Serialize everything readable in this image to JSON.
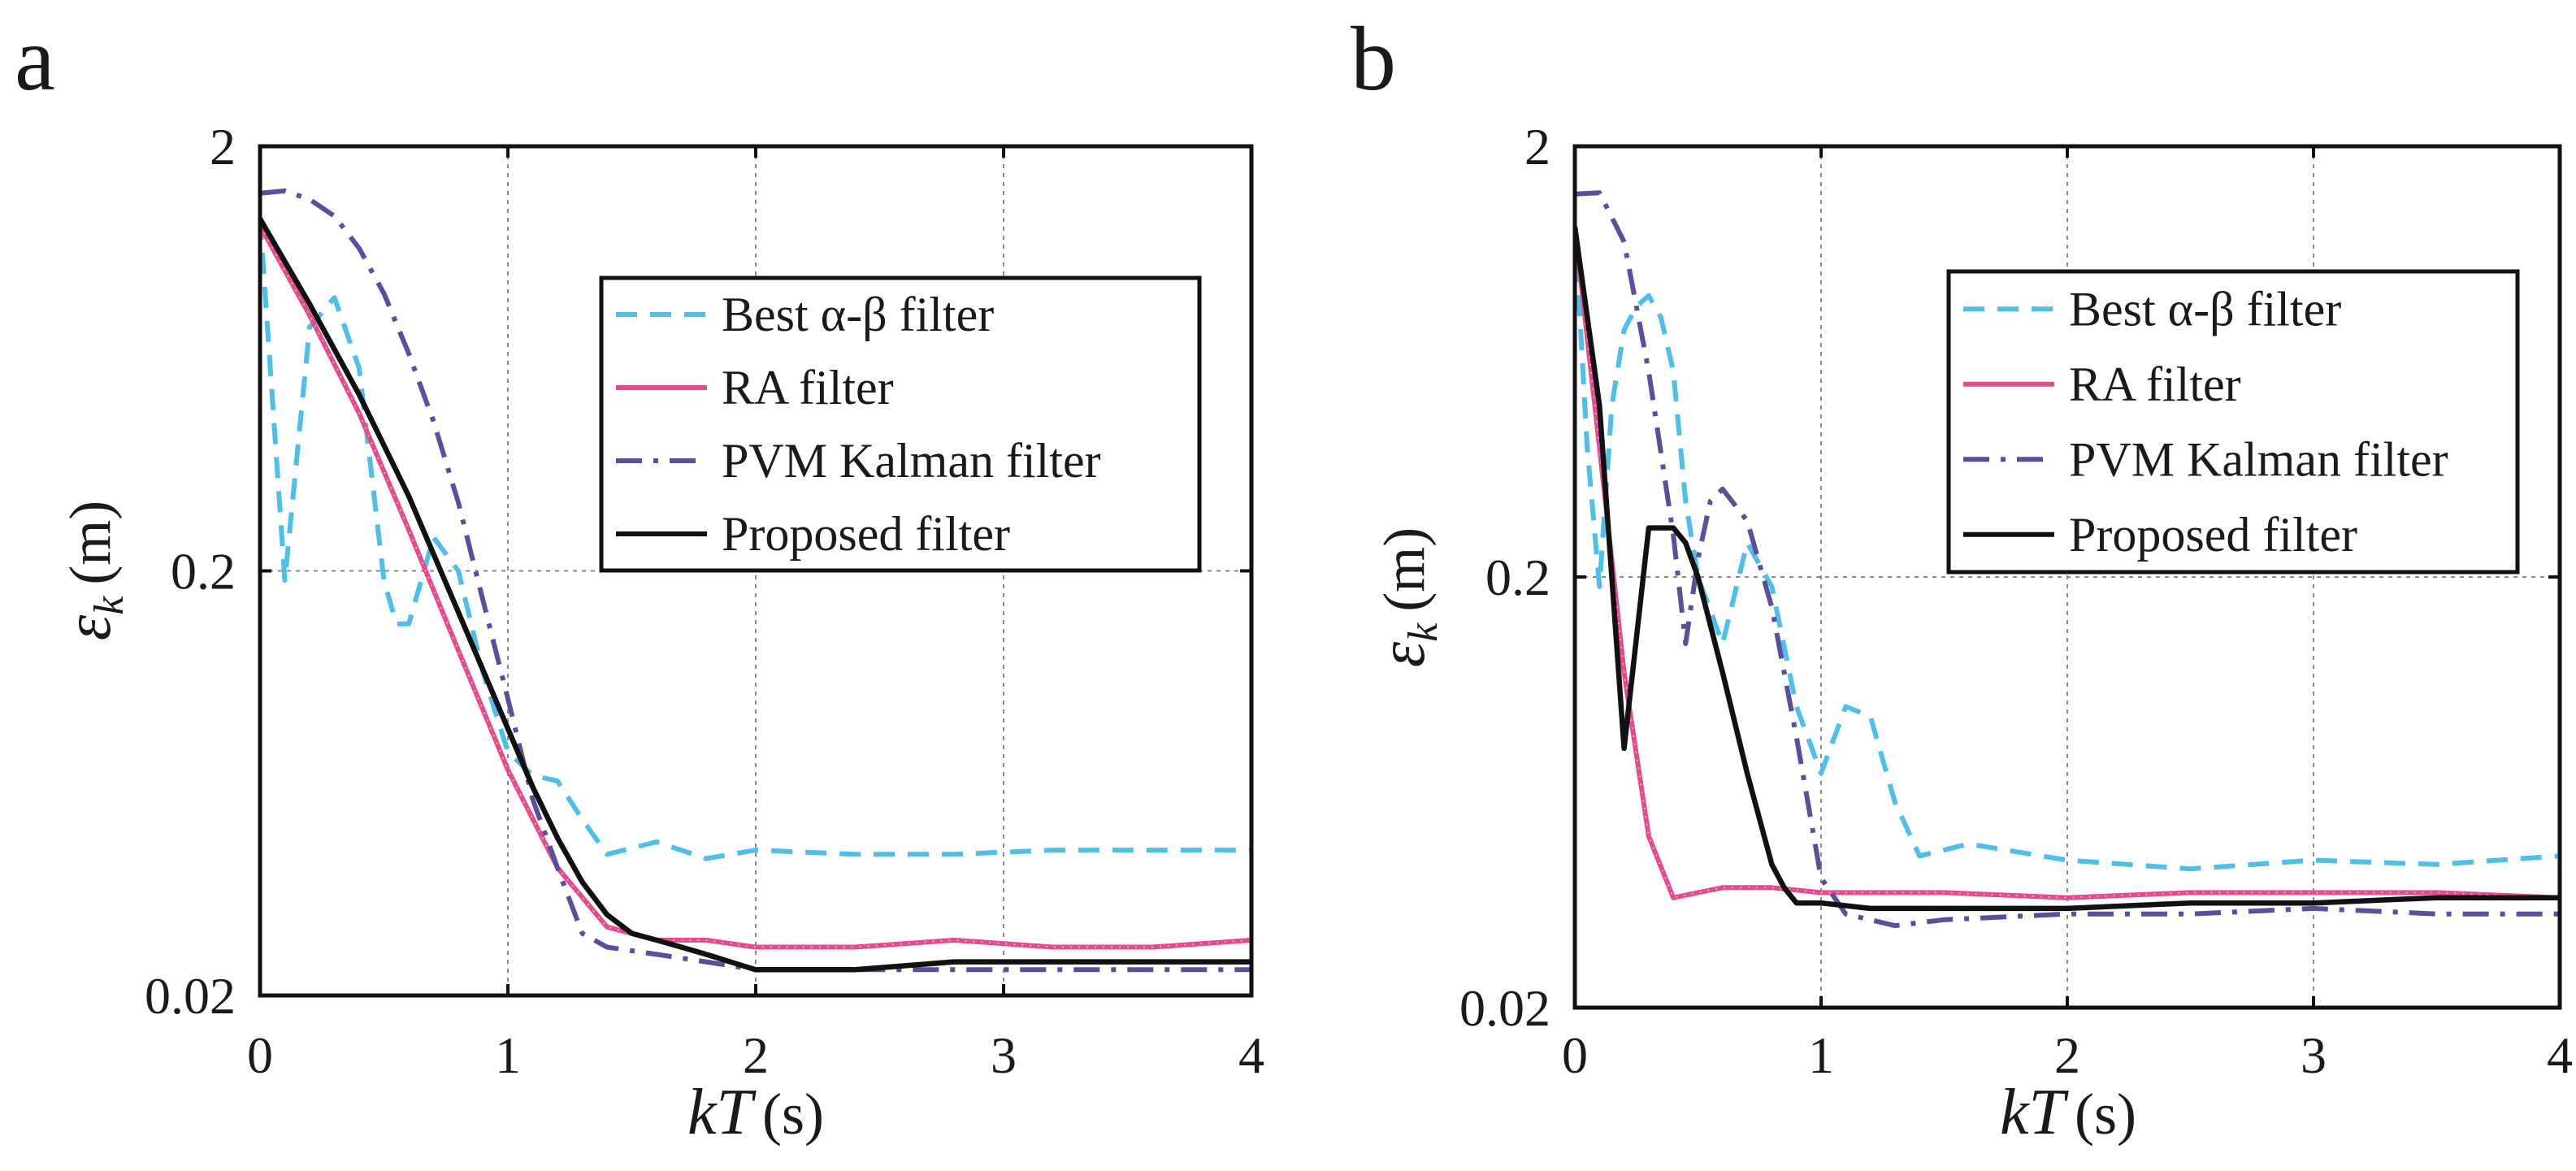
{
  "chart_data": [
    {
      "panel_label": "a",
      "type": "line",
      "xlabel": "kT (s)",
      "xlabel_var": "kT",
      "xlabel_unit": "(s)",
      "ylabel": "εk (m)",
      "ylabel_var": "ε",
      "ylabel_sub": "k",
      "ylabel_unit": "(m)",
      "xlim": [
        0,
        4
      ],
      "ylim": [
        0.02,
        2
      ],
      "yscale": "log",
      "xticks": [
        "0",
        "1",
        "2",
        "3",
        "4"
      ],
      "yticks": [
        "0.02",
        "0.2",
        "2"
      ],
      "grid": true,
      "legend_position": "top-right",
      "series": [
        {
          "name": "Best α-β filter",
          "color": "#4cc0e8",
          "style": "dashed",
          "x": [
            0,
            0.1,
            0.2,
            0.3,
            0.4,
            0.5,
            0.55,
            0.6,
            0.7,
            0.8,
            0.9,
            1.0,
            1.1,
            1.2,
            1.3,
            1.4,
            1.6,
            1.8,
            2.0,
            2.4,
            2.8,
            3.2,
            3.6,
            4.0
          ],
          "y": [
            1.35,
            0.19,
            0.75,
            0.88,
            0.6,
            0.19,
            0.15,
            0.15,
            0.24,
            0.2,
            0.115,
            0.075,
            0.066,
            0.064,
            0.052,
            0.043,
            0.046,
            0.042,
            0.044,
            0.043,
            0.043,
            0.044,
            0.044,
            0.044
          ]
        },
        {
          "name": "RA filter",
          "color": "#e8498d",
          "style": "dotted-solid",
          "x": [
            0,
            0.2,
            0.4,
            0.6,
            0.8,
            1.0,
            1.2,
            1.4,
            1.6,
            1.8,
            2.0,
            2.4,
            2.8,
            3.2,
            3.6,
            4.0
          ],
          "y": [
            1.3,
            0.8,
            0.47,
            0.25,
            0.13,
            0.068,
            0.04,
            0.029,
            0.027,
            0.027,
            0.026,
            0.026,
            0.027,
            0.026,
            0.026,
            0.027
          ]
        },
        {
          "name": "PVM Kalman filter",
          "color": "#5a4f9c",
          "style": "dashdot",
          "x": [
            0,
            0.1,
            0.2,
            0.3,
            0.4,
            0.5,
            0.6,
            0.7,
            0.8,
            0.9,
            1.0,
            1.1,
            1.2,
            1.3,
            1.4,
            1.6,
            1.8,
            2.0,
            2.4,
            2.8,
            3.2,
            3.6,
            4.0
          ],
          "y": [
            1.55,
            1.57,
            1.5,
            1.37,
            1.15,
            0.9,
            0.65,
            0.45,
            0.29,
            0.17,
            0.1,
            0.058,
            0.04,
            0.028,
            0.026,
            0.025,
            0.024,
            0.023,
            0.023,
            0.023,
            0.023,
            0.023,
            0.023
          ]
        },
        {
          "name": "Proposed filter",
          "color": "#111111",
          "style": "solid",
          "x": [
            0,
            0.2,
            0.4,
            0.6,
            0.8,
            1.0,
            1.1,
            1.2,
            1.3,
            1.4,
            1.5,
            1.6,
            1.7,
            1.8,
            2.0,
            2.4,
            2.8,
            3.2,
            3.6,
            4.0
          ],
          "y": [
            1.35,
            0.85,
            0.52,
            0.3,
            0.16,
            0.085,
            0.062,
            0.047,
            0.037,
            0.031,
            0.028,
            0.027,
            0.026,
            0.025,
            0.023,
            0.023,
            0.024,
            0.024,
            0.024,
            0.024
          ]
        }
      ]
    },
    {
      "panel_label": "b",
      "type": "line",
      "xlabel": "kT (s)",
      "xlabel_var": "kT",
      "xlabel_unit": "(s)",
      "ylabel": "εk (m)",
      "ylabel_var": "ε",
      "ylabel_sub": "k",
      "ylabel_unit": "(m)",
      "xlim": [
        0,
        4
      ],
      "ylim": [
        0.02,
        2
      ],
      "yscale": "log",
      "xticks": [
        "0",
        "1",
        "2",
        "3",
        "4"
      ],
      "yticks": [
        "0.02",
        "0.2",
        "2"
      ],
      "grid": true,
      "legend_position": "top-right",
      "series": [
        {
          "name": "Best α-β filter",
          "color": "#4cc0e8",
          "style": "dashed",
          "x": [
            0,
            0.05,
            0.1,
            0.15,
            0.2,
            0.25,
            0.3,
            0.35,
            0.4,
            0.45,
            0.5,
            0.6,
            0.7,
            0.8,
            0.9,
            1.0,
            1.1,
            1.2,
            1.3,
            1.4,
            1.6,
            2.0,
            2.5,
            3.0,
            3.5,
            4.0
          ],
          "y": [
            1.3,
            0.4,
            0.19,
            0.5,
            0.75,
            0.85,
            0.9,
            0.8,
            0.6,
            0.3,
            0.2,
            0.14,
            0.24,
            0.19,
            0.1,
            0.07,
            0.1,
            0.095,
            0.06,
            0.045,
            0.048,
            0.044,
            0.042,
            0.044,
            0.043,
            0.045
          ]
        },
        {
          "name": "RA filter",
          "color": "#e8498d",
          "style": "dotted-solid",
          "x": [
            0,
            0.1,
            0.2,
            0.3,
            0.4,
            0.5,
            0.6,
            0.8,
            1.0,
            1.5,
            2.0,
            2.5,
            3.0,
            3.5,
            4.0
          ],
          "y": [
            1.3,
            0.4,
            0.12,
            0.05,
            0.036,
            0.037,
            0.038,
            0.038,
            0.037,
            0.037,
            0.036,
            0.037,
            0.037,
            0.037,
            0.036
          ]
        },
        {
          "name": "PVM Kalman filter",
          "color": "#5a4f9c",
          "style": "dashdot",
          "x": [
            0,
            0.1,
            0.2,
            0.3,
            0.4,
            0.45,
            0.5,
            0.55,
            0.6,
            0.7,
            0.8,
            0.9,
            1.0,
            1.1,
            1.3,
            1.5,
            2.0,
            2.5,
            3.0,
            3.5,
            4.0
          ],
          "y": [
            1.55,
            1.56,
            1.2,
            0.6,
            0.25,
            0.14,
            0.22,
            0.3,
            0.32,
            0.27,
            0.17,
            0.085,
            0.04,
            0.033,
            0.031,
            0.032,
            0.033,
            0.033,
            0.034,
            0.033,
            0.033
          ]
        },
        {
          "name": "Proposed filter",
          "color": "#111111",
          "style": "solid",
          "x": [
            0,
            0.1,
            0.2,
            0.3,
            0.35,
            0.4,
            0.45,
            0.5,
            0.6,
            0.7,
            0.8,
            0.85,
            0.9,
            1.0,
            1.2,
            1.5,
            2.0,
            2.5,
            3.0,
            3.5,
            4.0
          ],
          "y": [
            1.3,
            0.5,
            0.08,
            0.26,
            0.26,
            0.26,
            0.24,
            0.2,
            0.12,
            0.07,
            0.043,
            0.038,
            0.035,
            0.035,
            0.034,
            0.034,
            0.034,
            0.035,
            0.035,
            0.036,
            0.036
          ]
        }
      ]
    }
  ]
}
